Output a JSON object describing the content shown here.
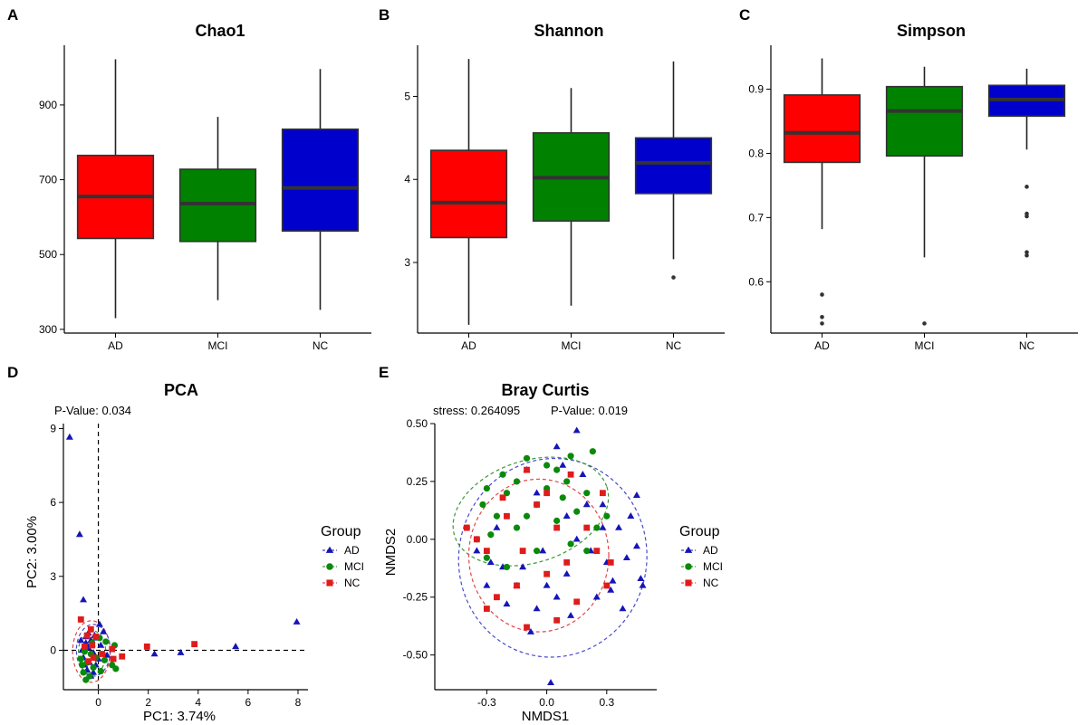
{
  "colors": {
    "AD": "#1515b8",
    "MCI": "#0a8a0a",
    "NC": "#e01b1b",
    "boxAD": "#ff0000",
    "boxMCI": "#008200",
    "boxNC": "#0000cc"
  },
  "panels": {
    "A": "A",
    "B": "B",
    "C": "C",
    "D": "D",
    "E": "E"
  },
  "chart_data": [
    {
      "type": "box",
      "panel": "A",
      "title": "Chao1",
      "categories": [
        "AD",
        "MCI",
        "NC"
      ],
      "yticks": [
        300,
        500,
        700,
        900
      ],
      "ylim": [
        290,
        1045
      ],
      "boxes": [
        {
          "name": "AD",
          "min": 330,
          "q1": 543,
          "median": 655,
          "q3": 765,
          "max": 1022,
          "outliers": []
        },
        {
          "name": "MCI",
          "min": 378,
          "q1": 535,
          "median": 636,
          "q3": 728,
          "max": 868,
          "outliers": []
        },
        {
          "name": "NC",
          "min": 352,
          "q1": 563,
          "median": 678,
          "q3": 835,
          "max": 996,
          "outliers": []
        }
      ]
    },
    {
      "type": "box",
      "panel": "B",
      "title": "Shannon",
      "categories": [
        "AD",
        "MCI",
        "NC"
      ],
      "yticks": [
        3,
        4,
        5
      ],
      "ylim": [
        2.15,
        5.55
      ],
      "boxes": [
        {
          "name": "AD",
          "min": 2.25,
          "q1": 3.3,
          "median": 3.72,
          "q3": 4.35,
          "max": 5.45,
          "outliers": []
        },
        {
          "name": "MCI",
          "min": 2.48,
          "q1": 3.5,
          "median": 4.02,
          "q3": 4.56,
          "max": 5.1,
          "outliers": []
        },
        {
          "name": "NC",
          "min": 3.04,
          "q1": 3.83,
          "median": 4.2,
          "q3": 4.5,
          "max": 5.42,
          "outliers": [
            2.82
          ]
        }
      ]
    },
    {
      "type": "box",
      "panel": "C",
      "title": "Simpson",
      "categories": [
        "AD",
        "MCI",
        "NC"
      ],
      "yticks": [
        0.6,
        0.7,
        0.8,
        0.9
      ],
      "ylim": [
        0.52,
        0.96
      ],
      "boxes": [
        {
          "name": "AD",
          "min": 0.682,
          "q1": 0.786,
          "median": 0.832,
          "q3": 0.891,
          "max": 0.948,
          "outliers": [
            0.58,
            0.545,
            0.535
          ]
        },
        {
          "name": "MCI",
          "min": 0.638,
          "q1": 0.796,
          "median": 0.866,
          "q3": 0.904,
          "max": 0.935,
          "outliers": [
            0.535
          ]
        },
        {
          "name": "NC",
          "min": 0.806,
          "q1": 0.858,
          "median": 0.884,
          "q3": 0.906,
          "max": 0.932,
          "outliers": [
            0.748,
            0.706,
            0.702,
            0.646,
            0.641
          ]
        }
      ]
    },
    {
      "type": "scatter",
      "panel": "D",
      "title": "PCA",
      "annotation": "P-Value: 0.034",
      "xlabel": "PC1: 3.74%",
      "ylabel": "PC2: 3.00%",
      "xticks": [
        0,
        2,
        4,
        6,
        8
      ],
      "yticks": [
        0,
        3,
        6,
        9
      ],
      "xlim": [
        -1.4,
        8.4
      ],
      "ylim": [
        -1.6,
        9.2
      ],
      "legend": {
        "title": "Group",
        "position": "right",
        "entries": [
          "AD",
          "MCI",
          "NC"
        ]
      },
      "reference_lines": {
        "x": 0,
        "y": 0
      },
      "ellipses": [
        {
          "group": "NC",
          "cx": -0.28,
          "cy": -0.05,
          "rx": 0.75,
          "ry": 1.25
        },
        {
          "group": "AD",
          "cx": -0.2,
          "cy": 0.0,
          "rx": 0.68,
          "ry": 1.05
        },
        {
          "group": "MCI",
          "cx": -0.25,
          "cy": -0.1,
          "rx": 0.55,
          "ry": 0.9
        }
      ],
      "series": [
        {
          "name": "AD",
          "marker": "triangle",
          "points": [
            [
              -1.15,
              8.65
            ],
            [
              -0.75,
              4.7
            ],
            [
              -0.6,
              2.05
            ],
            [
              5.5,
              0.15
            ],
            [
              7.95,
              1.15
            ],
            [
              3.3,
              -0.1
            ],
            [
              2.25,
              -0.15
            ],
            [
              0.05,
              1.05
            ],
            [
              0.2,
              0.75
            ],
            [
              -0.1,
              0.5
            ],
            [
              -0.3,
              0.4
            ],
            [
              -0.5,
              0.3
            ],
            [
              -0.4,
              0.1
            ],
            [
              -0.2,
              -0.1
            ],
            [
              -0.6,
              -0.3
            ],
            [
              -0.35,
              -0.5
            ],
            [
              -0.1,
              -0.6
            ],
            [
              -0.45,
              -0.8
            ],
            [
              -0.2,
              -0.9
            ],
            [
              -0.5,
              0.55
            ],
            [
              0.1,
              0.2
            ],
            [
              0.35,
              -0.2
            ],
            [
              -0.65,
              0.0
            ],
            [
              -0.25,
              0.25
            ],
            [
              -0.55,
              -0.6
            ],
            [
              -0.15,
              0.6
            ],
            [
              -0.3,
              -1.05
            ],
            [
              -0.7,
              0.4
            ],
            [
              0.0,
              -0.35
            ],
            [
              -0.4,
              0.7
            ]
          ]
        },
        {
          "name": "MCI",
          "marker": "circle",
          "points": [
            [
              -0.5,
              -1.2
            ],
            [
              -0.35,
              -1.05
            ],
            [
              -0.6,
              -0.9
            ],
            [
              0.7,
              -0.75
            ],
            [
              0.55,
              -0.6
            ],
            [
              -0.2,
              -0.7
            ],
            [
              -0.45,
              -0.5
            ],
            [
              -0.7,
              -0.35
            ],
            [
              0.3,
              0.35
            ],
            [
              0.65,
              0.2
            ],
            [
              -0.1,
              -0.3
            ],
            [
              -0.3,
              -0.15
            ],
            [
              -0.55,
              -0.05
            ],
            [
              0.05,
              0.5
            ],
            [
              0.25,
              -0.4
            ],
            [
              -0.25,
              0.3
            ],
            [
              0.1,
              -0.85
            ],
            [
              -0.65,
              -0.6
            ]
          ]
        },
        {
          "name": "NC",
          "marker": "square",
          "points": [
            [
              -0.7,
              1.25
            ],
            [
              -0.3,
              0.85
            ],
            [
              3.85,
              0.25
            ],
            [
              1.95,
              0.15
            ],
            [
              0.55,
              0.05
            ],
            [
              0.95,
              -0.25
            ],
            [
              0.6,
              -0.35
            ],
            [
              -0.1,
              0.55
            ],
            [
              -0.45,
              0.6
            ],
            [
              -0.2,
              -0.3
            ],
            [
              -0.55,
              0.15
            ],
            [
              -0.25,
              0.2
            ],
            [
              0.15,
              -0.15
            ],
            [
              -0.4,
              -0.45
            ]
          ]
        }
      ]
    },
    {
      "type": "scatter",
      "panel": "E",
      "title": "Bray Curtis",
      "annotation_stress": "stress: 0.264095",
      "annotation_p": "P-Value: 0.019",
      "xlabel": "NMDS1",
      "ylabel": "NMDS2",
      "xticks": [
        -0.3,
        0.0,
        0.3
      ],
      "xtick_labels": [
        "-0.3",
        "0.0",
        "0.3"
      ],
      "yticks": [
        -0.5,
        -0.25,
        0.0,
        0.25,
        0.5
      ],
      "ytick_labels": [
        "-0.50",
        "-0.25",
        "0.00",
        "0.25",
        "0.50"
      ],
      "xlim": [
        -0.56,
        0.55
      ],
      "ylim": [
        -0.65,
        0.5
      ],
      "legend": {
        "title": "Group",
        "position": "right",
        "entries": [
          "AD",
          "MCI",
          "NC"
        ]
      },
      "ellipses": [
        {
          "group": "AD",
          "cx": 0.03,
          "cy": -0.08,
          "rx": 0.47,
          "ry": 0.43,
          "angle": -10
        },
        {
          "group": "MCI",
          "cx": -0.08,
          "cy": 0.12,
          "rx": 0.4,
          "ry": 0.22,
          "angle": 18
        },
        {
          "group": "NC",
          "cx": -0.04,
          "cy": -0.07,
          "rx": 0.35,
          "ry": 0.33,
          "angle": 0
        }
      ],
      "series": [
        {
          "name": "AD",
          "marker": "triangle",
          "points": [
            [
              0.15,
              0.47
            ],
            [
              0.45,
              0.19
            ],
            [
              0.47,
              -0.17
            ],
            [
              0.45,
              -0.03
            ],
            [
              0.36,
              0.05
            ],
            [
              0.4,
              -0.08
            ],
            [
              0.02,
              -0.62
            ],
            [
              -0.28,
              -0.1
            ],
            [
              -0.3,
              -0.2
            ],
            [
              -0.2,
              -0.28
            ],
            [
              -0.05,
              -0.3
            ],
            [
              0.12,
              -0.33
            ],
            [
              0.25,
              -0.25
            ],
            [
              0.33,
              -0.18
            ],
            [
              0.05,
              0.4
            ],
            [
              -0.1,
              0.3
            ],
            [
              0.2,
              0.15
            ],
            [
              0.28,
              0.05
            ],
            [
              -0.15,
              -0.2
            ],
            [
              0.1,
              -0.15
            ],
            [
              -0.02,
              -0.05
            ],
            [
              0.15,
              0.0
            ],
            [
              -0.25,
              0.05
            ],
            [
              0.05,
              -0.25
            ],
            [
              0.3,
              -0.1
            ],
            [
              -0.12,
              -0.12
            ],
            [
              0.22,
              -0.05
            ],
            [
              -0.05,
              0.2
            ],
            [
              0.38,
              -0.3
            ],
            [
              0.18,
              0.28
            ],
            [
              -0.22,
              -0.12
            ],
            [
              0.1,
              0.1
            ],
            [
              -0.35,
              -0.05
            ],
            [
              0.28,
              0.15
            ],
            [
              0.0,
              -0.2
            ],
            [
              0.42,
              0.1
            ],
            [
              -0.08,
              -0.4
            ],
            [
              0.32,
              -0.22
            ],
            [
              0.08,
              0.32
            ],
            [
              0.48,
              -0.2
            ]
          ]
        },
        {
          "name": "MCI",
          "marker": "circle",
          "points": [
            [
              0.23,
              0.38
            ],
            [
              0.12,
              0.36
            ],
            [
              -0.1,
              0.35
            ],
            [
              0.0,
              0.32
            ],
            [
              -0.3,
              0.22
            ],
            [
              -0.2,
              0.2
            ],
            [
              -0.05,
              0.15
            ],
            [
              0.1,
              0.25
            ],
            [
              0.2,
              0.2
            ],
            [
              -0.25,
              0.1
            ],
            [
              -0.15,
              0.05
            ],
            [
              0.05,
              0.08
            ],
            [
              0.15,
              0.12
            ],
            [
              -0.35,
              0.0
            ],
            [
              -0.3,
              -0.08
            ],
            [
              -0.2,
              -0.12
            ],
            [
              0.25,
              0.05
            ],
            [
              -0.1,
              0.1
            ],
            [
              0.0,
              0.22
            ],
            [
              -0.32,
              0.15
            ],
            [
              0.12,
              -0.02
            ],
            [
              -0.05,
              -0.05
            ],
            [
              0.3,
              0.1
            ],
            [
              -0.22,
              0.28
            ],
            [
              0.2,
              -0.05
            ],
            [
              -0.4,
              0.05
            ],
            [
              -0.15,
              0.25
            ],
            [
              0.08,
              0.18
            ],
            [
              -0.28,
              0.02
            ],
            [
              0.05,
              0.3
            ]
          ]
        },
        {
          "name": "NC",
          "marker": "square",
          "points": [
            [
              -0.1,
              0.3
            ],
            [
              0.0,
              0.2
            ],
            [
              0.28,
              0.2
            ],
            [
              -0.2,
              0.1
            ],
            [
              0.05,
              0.05
            ],
            [
              -0.3,
              -0.05
            ],
            [
              -0.15,
              -0.2
            ],
            [
              0.1,
              -0.1
            ],
            [
              0.3,
              -0.2
            ],
            [
              -0.25,
              -0.25
            ],
            [
              0.05,
              -0.35
            ],
            [
              -0.1,
              -0.38
            ],
            [
              0.0,
              -0.15
            ],
            [
              0.15,
              -0.27
            ],
            [
              -0.35,
              0.0
            ],
            [
              0.2,
              0.05
            ],
            [
              -0.05,
              0.15
            ],
            [
              0.32,
              -0.1
            ],
            [
              -0.22,
              0.18
            ],
            [
              0.12,
              0.28
            ],
            [
              -0.4,
              0.05
            ],
            [
              0.25,
              -0.05
            ],
            [
              -0.12,
              -0.05
            ],
            [
              -0.3,
              -0.3
            ]
          ]
        }
      ]
    }
  ]
}
